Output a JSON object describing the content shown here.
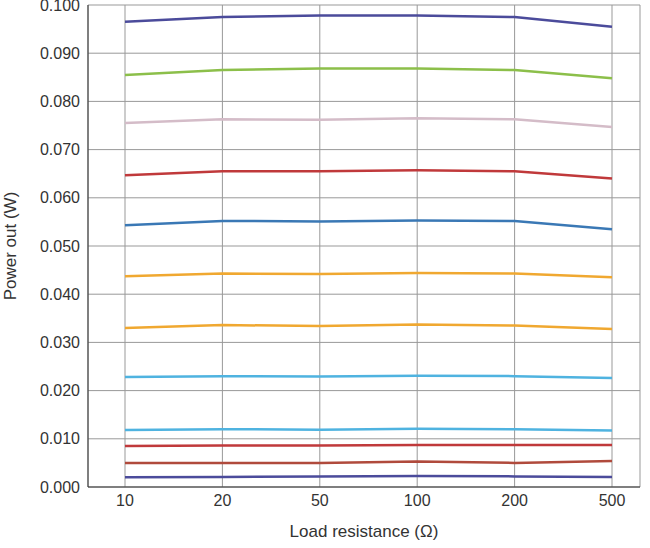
{
  "chart_data": {
    "type": "line",
    "x_label": "Load resistance (Ω)",
    "y_label": "Power out (W)",
    "categories": [
      10,
      20,
      50,
      100,
      200,
      500
    ],
    "ylim": [
      0,
      0.1
    ],
    "yticks": [
      {
        "value": 0,
        "label": "0.000"
      },
      {
        "value": 0.01,
        "label": "0.010"
      },
      {
        "value": 0.02,
        "label": "0.020"
      },
      {
        "value": 0.03,
        "label": "0.030"
      },
      {
        "value": 0.04,
        "label": "0.040"
      },
      {
        "value": 0.05,
        "label": "0.050"
      },
      {
        "value": 0.06,
        "label": "0.060"
      },
      {
        "value": 0.07,
        "label": "0.070"
      },
      {
        "value": 0.08,
        "label": "0.080"
      },
      {
        "value": 0.09,
        "label": "0.090"
      },
      {
        "value": 0.1,
        "label": "0.100"
      }
    ],
    "grid": true,
    "series": [
      {
        "color": "#4b4b9b",
        "values": [
          0.0965,
          0.0975,
          0.0978,
          0.0978,
          0.0975,
          0.0955
        ]
      },
      {
        "color": "#8cbf4a",
        "values": [
          0.0855,
          0.0865,
          0.0868,
          0.0868,
          0.0865,
          0.0848
        ]
      },
      {
        "color": "#d4bcc8",
        "values": [
          0.0755,
          0.0763,
          0.0762,
          0.0765,
          0.0763,
          0.0747
        ]
      },
      {
        "color": "#c0393b",
        "values": [
          0.0647,
          0.0655,
          0.0655,
          0.0657,
          0.0655,
          0.064
        ]
      },
      {
        "color": "#3a78b5",
        "values": [
          0.0543,
          0.0552,
          0.0551,
          0.0553,
          0.0552,
          0.0535
        ]
      },
      {
        "color": "#f0a830",
        "values": [
          0.0437,
          0.0443,
          0.0442,
          0.0444,
          0.0443,
          0.0435
        ]
      },
      {
        "color": "#f0a830",
        "values": [
          0.033,
          0.0336,
          0.0334,
          0.0337,
          0.0335,
          0.0328
        ]
      },
      {
        "color": "#4fb3e0",
        "values": [
          0.0228,
          0.023,
          0.0229,
          0.0231,
          0.023,
          0.0226
        ]
      },
      {
        "color": "#4fb3e0",
        "values": [
          0.0118,
          0.012,
          0.0119,
          0.0121,
          0.012,
          0.0117
        ]
      },
      {
        "color": "#c0393b",
        "values": [
          0.0085,
          0.0086,
          0.0086,
          0.0087,
          0.0087,
          0.0087
        ]
      },
      {
        "color": "#b04a3c",
        "values": [
          0.005,
          0.005,
          0.005,
          0.0053,
          0.005,
          0.0054
        ]
      },
      {
        "color": "#4b4b9b",
        "values": [
          0.002,
          0.0021,
          0.0022,
          0.0023,
          0.0022,
          0.0021
        ]
      }
    ]
  }
}
